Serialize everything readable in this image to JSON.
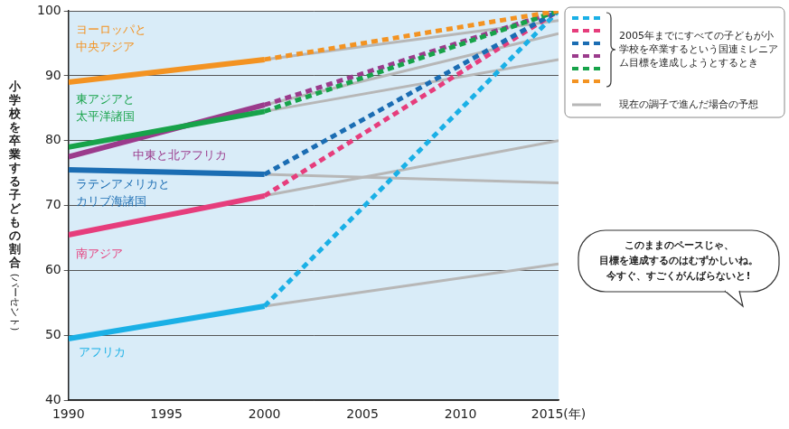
{
  "chart_data": {
    "type": "line",
    "x": [
      1990,
      2000,
      2015
    ],
    "xlim": [
      1990,
      2015
    ],
    "xticks": [
      1990,
      1995,
      2000,
      2005,
      2010,
      {
        "value": 2015,
        "label": "2015(年)"
      }
    ],
    "ylim": [
      40,
      100
    ],
    "yticks": [
      40,
      50,
      60,
      70,
      80,
      90,
      100
    ],
    "y_label": "小学校を卒業する子どもの割合(パーセント)",
    "grid": "y",
    "series": [
      {
        "name": "ヨーロッパと中央アジア",
        "color": "#f39322",
        "values": [
          89,
          92.5,
          null
        ],
        "target": 100,
        "projection": 98.5
      },
      {
        "name": "東アジアと太平洋諸国",
        "color": "#17a34a",
        "values": [
          79,
          84.5,
          null
        ],
        "target": 100,
        "projection": 92.5
      },
      {
        "name": "中東と北アフリカ",
        "color": "#9b3b8c",
        "values": [
          77.5,
          85.5,
          null
        ],
        "target": 100,
        "projection": 96.5
      },
      {
        "name": "ラテンアメリカとカリブ海諸国",
        "color": "#1b6db3",
        "values": [
          75.5,
          74.8,
          null
        ],
        "target": 100,
        "projection": 73.5
      },
      {
        "name": "南アジア",
        "color": "#e63d7c",
        "values": [
          65.5,
          71.5,
          null
        ],
        "target": 100,
        "projection": 80
      },
      {
        "name": "アフリカ",
        "color": "#1ab0e6",
        "values": [
          49.5,
          54.5,
          null
        ],
        "target": 100,
        "projection": 61
      }
    ],
    "legend": "upper right",
    "legend_entries": [
      {
        "label": "2005年までにすべての子どもが小学校を卒業するという国連ミレニアム目標を達成しようとするとき",
        "line_style": "dotted"
      },
      {
        "label": "現在の調子で進んだ場合の予想",
        "line_style": "solid",
        "color": "#b7b7b7"
      }
    ],
    "annotations": [
      "このままのペースじゃ、目標を達成するのはむずかしいね。今すぐ、すごくがんばらないと!"
    ]
  }
}
